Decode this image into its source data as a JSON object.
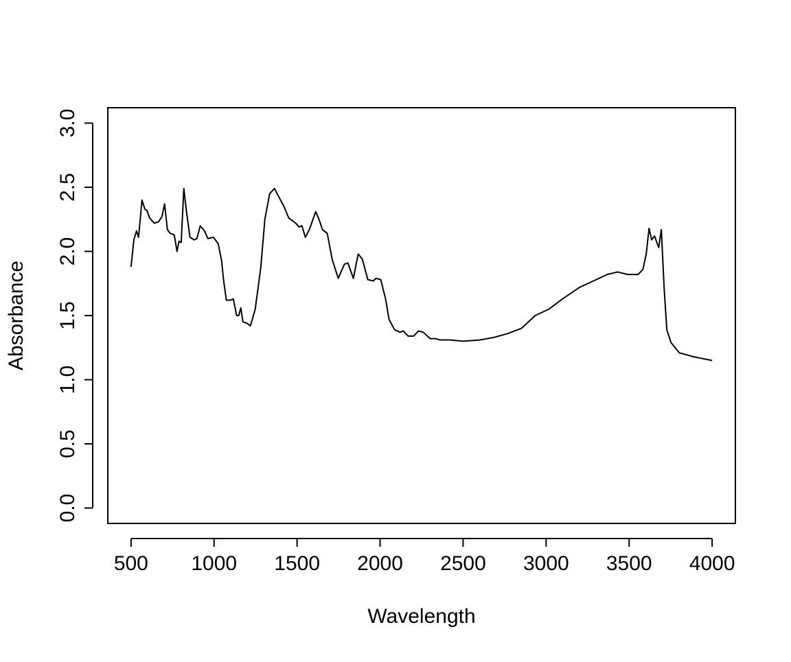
{
  "chart_data": {
    "type": "line",
    "x_label": "Wavelength",
    "y_label": "Absorbance",
    "x": [
      500,
      517,
      533,
      545,
      566,
      583,
      595,
      612,
      640,
      665,
      686,
      702,
      719,
      736,
      760,
      777,
      789,
      802,
      818,
      835,
      855,
      880,
      897,
      917,
      942,
      963,
      996,
      1025,
      1045,
      1058,
      1074,
      1099,
      1116,
      1136,
      1149,
      1161,
      1174,
      1198,
      1219,
      1248,
      1281,
      1306,
      1335,
      1364,
      1388,
      1421,
      1450,
      1492,
      1512,
      1529,
      1550,
      1574,
      1612,
      1632,
      1653,
      1682,
      1711,
      1748,
      1785,
      1806,
      1839,
      1868,
      1893,
      1926,
      1959,
      1975,
      2004,
      2033,
      2054,
      2087,
      2120,
      2140,
      2169,
      2202,
      2231,
      2260,
      2302,
      2335,
      2360,
      2417,
      2500,
      2603,
      2686,
      2769,
      2851,
      2893,
      2934,
      3017,
      3099,
      3202,
      3285,
      3368,
      3430,
      3492,
      3554,
      3583,
      3603,
      3620,
      3636,
      3653,
      3678,
      3694,
      3711,
      3727,
      3752,
      3802,
      3884,
      4000
    ],
    "values": [
      1.88,
      2.09,
      2.16,
      2.11,
      2.4,
      2.33,
      2.32,
      2.26,
      2.22,
      2.23,
      2.27,
      2.37,
      2.17,
      2.14,
      2.13,
      2.0,
      2.08,
      2.07,
      2.49,
      2.3,
      2.11,
      2.09,
      2.1,
      2.2,
      2.16,
      2.1,
      2.11,
      2.06,
      1.93,
      1.77,
      1.62,
      1.62,
      1.63,
      1.5,
      1.5,
      1.56,
      1.45,
      1.44,
      1.42,
      1.55,
      1.87,
      2.25,
      2.45,
      2.49,
      2.43,
      2.35,
      2.26,
      2.22,
      2.19,
      2.2,
      2.11,
      2.17,
      2.31,
      2.25,
      2.17,
      2.14,
      1.94,
      1.79,
      1.9,
      1.91,
      1.79,
      1.98,
      1.94,
      1.78,
      1.77,
      1.79,
      1.78,
      1.63,
      1.47,
      1.39,
      1.37,
      1.38,
      1.34,
      1.34,
      1.38,
      1.37,
      1.32,
      1.32,
      1.31,
      1.31,
      1.3,
      1.31,
      1.33,
      1.36,
      1.4,
      1.45,
      1.5,
      1.55,
      1.63,
      1.72,
      1.77,
      1.82,
      1.84,
      1.82,
      1.82,
      1.86,
      1.98,
      2.18,
      2.09,
      2.12,
      2.03,
      2.17,
      1.71,
      1.39,
      1.29,
      1.21,
      1.18,
      1.15
    ],
    "color": "#000000",
    "xlim": [
      360,
      4140
    ],
    "xticks": [
      500,
      1000,
      1500,
      2000,
      2500,
      3000,
      3500,
      4000
    ],
    "ylim": [
      -0.12,
      3.12
    ],
    "yticks": [
      {
        "value": 0,
        "label": "0.0"
      },
      0.5,
      {
        "value": 1,
        "label": "1.0"
      },
      1.5,
      {
        "value": 2,
        "label": "2.0"
      },
      2.5,
      {
        "value": 3,
        "label": "3.0"
      }
    ],
    "grid": false
  }
}
